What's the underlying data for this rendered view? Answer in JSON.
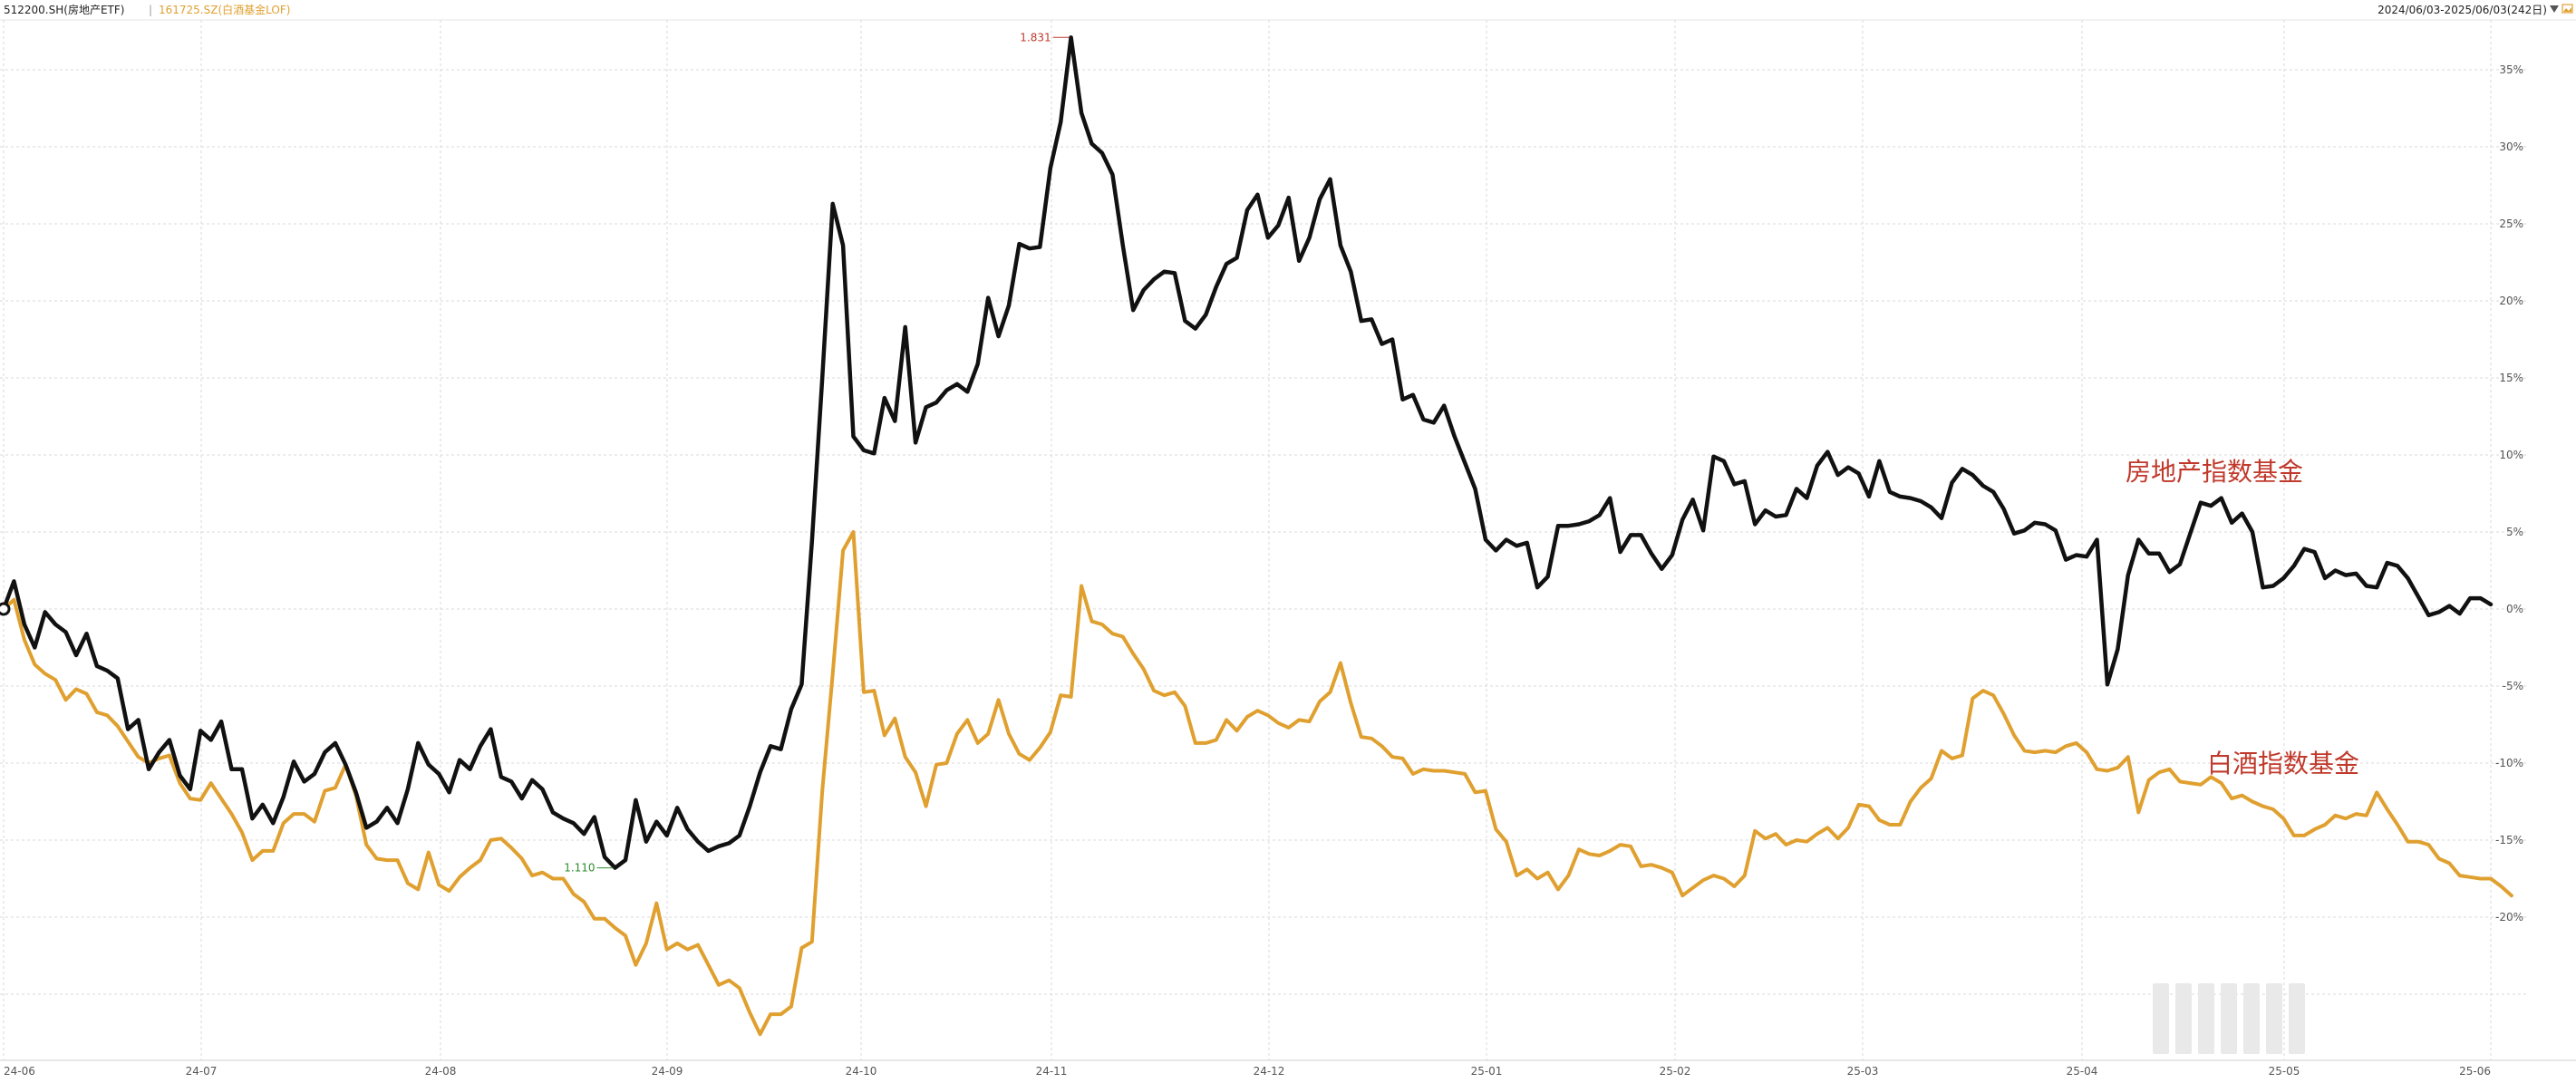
{
  "header": {
    "series1_label": "512200.SH(房地产ETF)",
    "separator": "|",
    "series2_label": "161725.SZ(白酒基金LOF)",
    "date_range": "2024/06/03-2025/06/03(242日)",
    "menu_icon": "triangle-down-icon",
    "image_icon": "image-icon"
  },
  "colors": {
    "series1": "#111111",
    "series2": "#e0a030",
    "grid": "#d9d9d9",
    "annotation": "#c0392b",
    "max_marker": "#c0392b",
    "min_marker": "#2e8b2e"
  },
  "annotations": {
    "series1": "房地产指数基金",
    "series2": "白酒指数基金",
    "max_label": "1.831",
    "min_label": "1.110"
  },
  "chart_data": {
    "type": "line",
    "x_tick_labels": [
      "24-06",
      "24-07",
      "24-08",
      "24-09",
      "24-10",
      "24-11",
      "24-12",
      "25-01",
      "25-02",
      "25-03",
      "25-04",
      "25-05",
      "25-06"
    ],
    "y_tick_labels": [
      "35%",
      "30%",
      "25%",
      "20%",
      "15%",
      "10%",
      "5%",
      "0%",
      "-5%",
      "-10%",
      "-15%",
      "-20%"
    ],
    "ylim": [
      -28,
      38
    ],
    "grid": true,
    "series": [
      {
        "name": "512200.SH(房地产ETF)",
        "values": [
          0,
          1.8,
          -1,
          -2.5,
          -0.2,
          -1,
          -1.5,
          -3,
          -1.6,
          -3.7,
          -4,
          -4.5,
          -7.8,
          -7.2,
          -10.4,
          -9.3,
          -8.5,
          -10.8,
          -11.7,
          -7.9,
          -8.5,
          -7.3,
          -10.4,
          -10.4,
          -13.6,
          -12.7,
          -13.9,
          -12.2,
          -9.9,
          -11.2,
          -10.7,
          -9.3,
          -8.7,
          -10.1,
          -11.9,
          -14.2,
          -13.8,
          -12.9,
          -13.9,
          -11.7,
          -8.7,
          -10.1,
          -10.7,
          -11.9,
          -9.8,
          -10.4,
          -8.9,
          -7.8,
          -10.9,
          -11.2,
          -12.3,
          -11.1,
          -11.7,
          -13.2,
          -13.6,
          -13.9,
          -14.6,
          -13.5,
          -16.1,
          -16.8,
          -16.3,
          -12.4,
          -15.1,
          -13.8,
          -14.7,
          -12.9,
          -14.3,
          -15.1,
          -15.7,
          -15.4,
          -15.2,
          -14.7,
          -12.8,
          -10.6,
          -8.9,
          -9.1,
          -6.5,
          -4.9,
          4.4,
          15,
          26.3,
          23.6,
          11.2,
          10.3,
          10.1,
          13.7,
          12.2,
          18.3,
          10.8,
          13.1,
          13.4,
          14.2,
          14.6,
          14.1,
          15.9,
          20.2,
          17.7,
          19.7,
          23.7,
          23.4,
          23.5,
          28.6,
          31.6,
          37.1,
          32.2,
          30.2,
          29.6,
          28.2,
          23.6,
          19.4,
          20.7,
          21.4,
          21.9,
          21.8,
          18.7,
          18.2,
          19.1,
          20.9,
          22.4,
          22.8,
          25.9,
          26.9,
          24.1,
          24.9,
          26.7,
          22.6,
          24.1,
          26.6,
          27.9,
          23.6,
          21.9,
          18.7,
          18.8,
          17.2,
          17.5,
          13.6,
          13.9,
          12.3,
          12.1,
          13.2,
          11.2,
          9.5,
          7.8,
          4.5,
          3.8,
          4.5,
          4.1,
          4.3,
          1.4,
          2.1,
          5.4,
          5.4,
          5.5,
          5.7,
          6.1,
          7.2,
          3.7,
          4.8,
          4.8,
          3.6,
          2.6,
          3.5,
          5.8,
          7.1,
          5.1,
          9.9,
          9.6,
          8.1,
          8.3,
          5.5,
          6.4,
          6,
          6.1,
          7.8,
          7.2,
          9.3,
          10.2,
          8.7,
          9.2,
          8.8,
          7.3,
          9.6,
          7.6,
          7.3,
          7.2,
          7,
          6.6,
          5.9,
          8.2,
          9.1,
          8.7,
          8,
          7.6,
          6.5,
          4.9,
          5.1,
          5.6,
          5.5,
          5.1,
          3.2,
          3.5,
          3.4,
          4.5,
          -4.9,
          -2.6,
          2.2,
          4.5,
          3.6,
          3.6,
          2.4,
          2.9,
          4.9,
          6.9,
          6.7,
          7.2,
          5.6,
          6.2,
          5,
          1.4,
          1.5,
          2,
          2.8,
          3.9,
          3.7,
          2,
          2.5,
          2.2,
          2.3,
          1.5,
          1.4,
          3,
          2.8,
          2,
          0.8,
          -0.4,
          -0.2,
          0.2,
          -0.3,
          0.7,
          0.7,
          0.3
        ]
      },
      {
        "name": "161725.SZ(白酒基金LOF)",
        "values": [
          0,
          0.6,
          -2,
          -3.6,
          -4.2,
          -4.6,
          -5.9,
          -5.2,
          -5.5,
          -6.7,
          -6.9,
          -7.6,
          -8.6,
          -9.6,
          -10,
          -9.7,
          -9.5,
          -11.3,
          -12.3,
          -12.4,
          -11.3,
          -12.3,
          -13.3,
          -14.5,
          -16.3,
          -15.7,
          -15.7,
          -13.9,
          -13.3,
          -13.3,
          -13.8,
          -11.8,
          -11.6,
          -10.1,
          -12.1,
          -15.3,
          -16.2,
          -16.3,
          -16.3,
          -17.8,
          -18.2,
          -15.8,
          -17.9,
          -18.3,
          -17.4,
          -16.8,
          -16.3,
          -15,
          -14.9,
          -15.5,
          -16.2,
          -17.3,
          -17.1,
          -17.5,
          -17.5,
          -18.5,
          -19,
          -20.1,
          -20.1,
          -20.7,
          -21.2,
          -23.1,
          -21.7,
          -19.1,
          -22.1,
          -21.7,
          -22.1,
          -21.8,
          -23.1,
          -24.4,
          -24.1,
          -24.6,
          -26.2,
          -27.6,
          -26.3,
          -26.3,
          -25.8,
          -22,
          -21.6,
          -11.8,
          -4.2,
          3.8,
          5,
          -5.4,
          -5.3,
          -8.2,
          -7.1,
          -9.6,
          -10.6,
          -12.8,
          -10.1,
          -10,
          -8.1,
          -7.2,
          -8.7,
          -8.1,
          -5.9,
          -8.1,
          -9.4,
          -9.8,
          -9,
          -8,
          -5.6,
          -5.7,
          1.5,
          -0.8,
          -1,
          -1.6,
          -1.8,
          -2.9,
          -3.9,
          -5.3,
          -5.6,
          -5.4,
          -6.3,
          -8.7,
          -8.7,
          -8.5,
          -7.2,
          -7.9,
          -7,
          -6.6,
          -6.9,
          -7.4,
          -7.7,
          -7.2,
          -7.3,
          -6,
          -5.4,
          -3.5,
          -6.1,
          -8.3,
          -8.4,
          -8.9,
          -9.6,
          -9.7,
          -10.7,
          -10.4,
          -10.5,
          -10.5,
          -10.6,
          -10.7,
          -11.9,
          -11.8,
          -14.3,
          -15.1,
          -17.3,
          -16.9,
          -17.5,
          -17.1,
          -18.2,
          -17.3,
          -15.6,
          -15.9,
          -16,
          -15.7,
          -15.3,
          -15.4,
          -16.7,
          -16.6,
          -16.8,
          -17.1,
          -18.6,
          -18.1,
          -17.6,
          -17.3,
          -17.5,
          -18,
          -17.3,
          -14.4,
          -14.9,
          -14.6,
          -15.3,
          -15,
          -15.1,
          -14.6,
          -14.2,
          -14.9,
          -14.2,
          -12.7,
          -12.8,
          -13.7,
          -14,
          -14,
          -12.5,
          -11.6,
          -11,
          -9.2,
          -9.7,
          -9.5,
          -5.8,
          -5.3,
          -5.6,
          -6.8,
          -8.2,
          -9.2,
          -9.3,
          -9.2,
          -9.3,
          -8.9,
          -8.7,
          -9.3,
          -10.4,
          -10.5,
          -10.3,
          -9.6,
          -13.2,
          -11.1,
          -10.6,
          -10.4,
          -11.2,
          -11.3,
          -11.4,
          -10.9,
          -11.3,
          -12.3,
          -12.1,
          -12.5,
          -12.8,
          -13,
          -13.6,
          -14.7,
          -14.7,
          -14.3,
          -14,
          -13.4,
          -13.6,
          -13.3,
          -13.4,
          -11.9,
          -13,
          -14,
          -15.1,
          -15.1,
          -15.3,
          -16.2,
          -16.5,
          -17.3,
          -17.4,
          -17.5,
          -17.5,
          -18,
          -18.6
        ]
      }
    ]
  }
}
